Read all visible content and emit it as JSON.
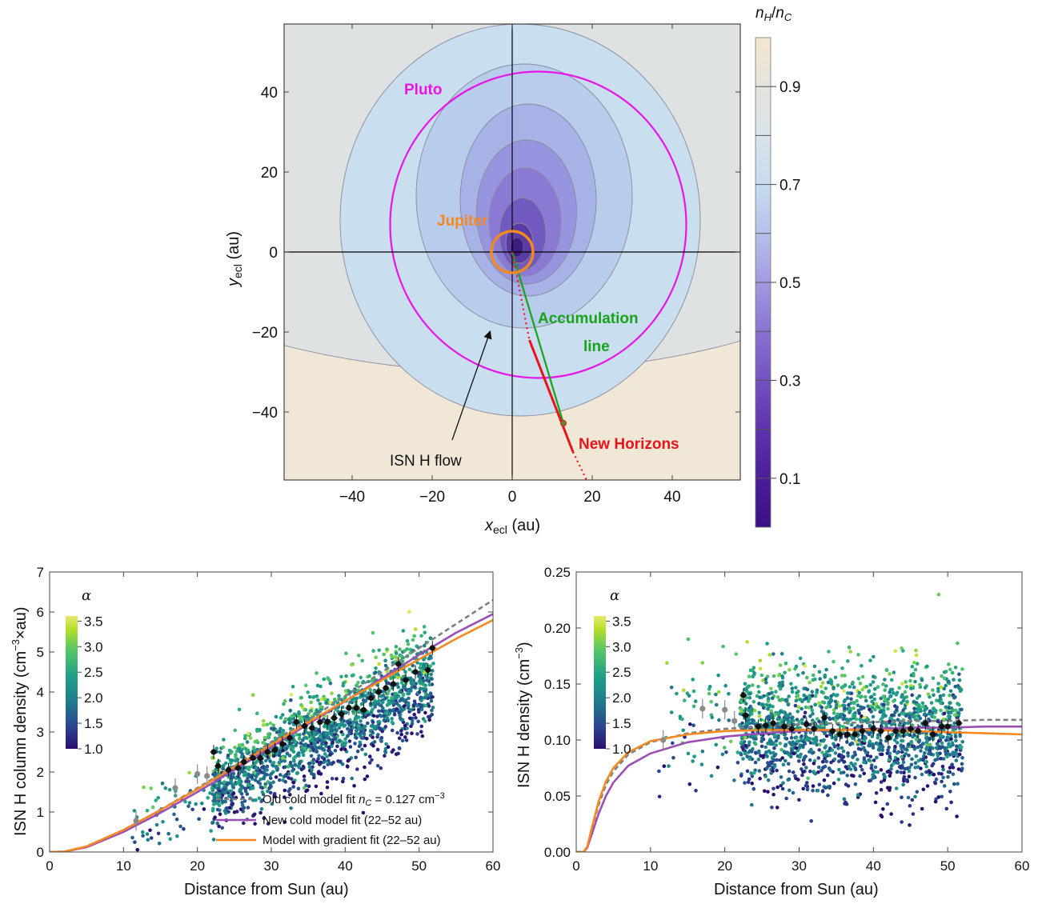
{
  "colors": {
    "pluto": "#e815e8",
    "jupiter": "#f5891f",
    "accumulation": "#1aa31a",
    "new_horizons": "#e8141a",
    "old_fit": "#7f7f7f",
    "new_fit": "#9b4fb5",
    "gradient_fit": "#f5891f",
    "data_black": "#111111",
    "data_gray": "#8a8a8a"
  },
  "chart_data": [
    {
      "type": "contour",
      "xlabel_main": "x",
      "xlabel_sub": "ecl",
      "xlabel_unit": " (au)",
      "ylabel_main": "y",
      "ylabel_sub": "ecl",
      "ylabel_unit": " (au)",
      "xlim": [
        -57,
        57
      ],
      "ylim": [
        -57,
        57
      ],
      "xticks": [
        -40,
        -20,
        0,
        20,
        40
      ],
      "xtick_labels": [
        "−40",
        "−20",
        "0",
        "20",
        "40"
      ],
      "yticks": [
        -40,
        -20,
        0,
        20,
        40
      ],
      "ytick_labels": [
        "−40",
        "−20",
        "0",
        "20",
        "40"
      ],
      "colorbar": {
        "title_html": "n_H/n_C",
        "title_main1": "n",
        "title_sub1": "H",
        "title_slash": "/",
        "title_main2": "n",
        "title_sub2": "C",
        "range": [
          0,
          1
        ],
        "ticks": [
          0.1,
          0.3,
          0.5,
          0.7,
          0.9
        ],
        "tick_labels": [
          "0.1",
          "0.3",
          "0.5",
          "0.7",
          "0.9"
        ],
        "levels": [
          0.1,
          0.2,
          0.3,
          0.4,
          0.5,
          0.6,
          0.7,
          0.8,
          0.9
        ]
      },
      "contours": [
        {
          "level": 0.8,
          "cx": -2,
          "cy": 30,
          "rx": 120,
          "ry": 60
        },
        {
          "level": 0.7,
          "cx": 2,
          "cy": 8,
          "rx": 45,
          "ry": 49
        },
        {
          "level": 0.6,
          "cx": 3,
          "cy": 14,
          "rx": 27,
          "ry": 33
        },
        {
          "level": 0.5,
          "cx": 4,
          "cy": 13,
          "rx": 17,
          "ry": 24
        },
        {
          "level": 0.4,
          "cx": 3.6,
          "cy": 10,
          "rx": 12.5,
          "ry": 18
        },
        {
          "level": 0.3,
          "cx": 3.2,
          "cy": 7.5,
          "rx": 9,
          "ry": 13.5
        },
        {
          "level": 0.2,
          "cx": 2.6,
          "cy": 4.5,
          "rx": 5.8,
          "ry": 9
        },
        {
          "level": 0.1,
          "cx": 1.8,
          "cy": 2.2,
          "rx": 3.4,
          "ry": 5
        }
      ],
      "pluto_orbit": {
        "cx": 6.5,
        "cy": 6.8,
        "rx": 37,
        "ry": 38.3
      },
      "jupiter_orbit": {
        "cx": 0,
        "cy": 0,
        "r": 5.2
      },
      "annotations": {
        "pluto": "Pluto",
        "jupiter": "Jupiter",
        "accumulation_1": "Accumulation",
        "accumulation_2": "line",
        "new_horizons": "New Horizons",
        "flow": "ISN H flow"
      },
      "new_horizons_position": [
        12.8,
        -42.8
      ],
      "accumulation_line": [
        [
          0,
          0
        ],
        [
          12.8,
          -42.8
        ]
      ],
      "trajectory_dotted_inner": [
        [
          0,
          0
        ],
        [
          4.3,
          -22
        ]
      ],
      "trajectory_solid": [
        [
          4.3,
          -22
        ],
        [
          15.2,
          -50
        ]
      ],
      "trajectory_dotted_outer": [
        [
          15.2,
          -50
        ],
        [
          18.6,
          -57
        ]
      ],
      "flow_arrow": {
        "from": [
          -15,
          -47
        ],
        "to": [
          -5.5,
          -19.8
        ]
      }
    },
    {
      "type": "scatter",
      "xlabel": "Distance from Sun (au)",
      "ylabel_main": "ISN H column density (cm",
      "ylabel_sup": "−3",
      "ylabel_tail": "×au)",
      "xlim": [
        0,
        60
      ],
      "ylim": [
        0,
        7
      ],
      "xticks": [
        0,
        10,
        20,
        30,
        40,
        50,
        60
      ],
      "yticks": [
        0,
        1,
        2,
        3,
        4,
        5,
        6,
        7
      ],
      "colorbar": {
        "title": "α",
        "range": [
          1.0,
          3.6
        ],
        "ticks": [
          1.0,
          1.5,
          2.0,
          2.5,
          3.0,
          3.5
        ],
        "tick_labels": [
          "1.0",
          "1.5",
          "2.0",
          "2.5",
          "3.0",
          "3.5"
        ]
      },
      "legend": [
        {
          "label_pre": "Old cold model fit ",
          "label_n": "n",
          "label_sub": "C",
          "label_post": " = 0.127 cm",
          "label_sup": "−3",
          "style": "dashed-gray"
        },
        {
          "label": "New cold model fit (22–52 au)",
          "style": "purple"
        },
        {
          "label": "Model with gradient fit (22–52 au)",
          "style": "orange"
        }
      ],
      "legend_placement": "bottom-right",
      "series": [
        {
          "name": "Old cold model fit",
          "x": [
            0,
            2,
            5,
            10,
            15,
            20,
            25,
            30,
            35,
            40,
            45,
            50,
            55,
            60
          ],
          "y": [
            0,
            0.01,
            0.14,
            0.55,
            1.05,
            1.6,
            2.15,
            2.75,
            3.3,
            3.9,
            4.5,
            5.1,
            5.7,
            6.3
          ]
        },
        {
          "name": "New cold model fit (22–52 au)",
          "x": [
            0,
            2,
            5,
            10,
            15,
            20,
            25,
            30,
            35,
            40,
            45,
            50,
            55,
            60
          ],
          "y": [
            0,
            0.01,
            0.12,
            0.5,
            0.98,
            1.5,
            2.05,
            2.62,
            3.2,
            3.77,
            4.35,
            4.93,
            5.48,
            5.95
          ]
        },
        {
          "name": "Model with gradient fit (22–52 au)",
          "x": [
            0,
            2,
            5,
            10,
            15,
            20,
            25,
            30,
            35,
            40,
            45,
            50,
            55,
            60
          ],
          "y": [
            0,
            0.01,
            0.14,
            0.55,
            1.05,
            1.57,
            2.12,
            2.68,
            3.24,
            3.78,
            4.3,
            4.82,
            5.33,
            5.8
          ]
        }
      ],
      "binned_black": [
        [
          22.2,
          2.5
        ],
        [
          22.8,
          2.15
        ],
        [
          24.2,
          2.05
        ],
        [
          25.5,
          2.1
        ],
        [
          26.3,
          2.25
        ],
        [
          27.5,
          2.35
        ],
        [
          28.5,
          2.35
        ],
        [
          29.5,
          2.5
        ],
        [
          30.5,
          2.55
        ],
        [
          31.5,
          2.7
        ],
        [
          32.5,
          2.85
        ],
        [
          33.4,
          3.25
        ],
        [
          34.5,
          3.15
        ],
        [
          35.5,
          3.1
        ],
        [
          36.6,
          3.25
        ],
        [
          37.6,
          3.25
        ],
        [
          38.5,
          3.35
        ],
        [
          39.5,
          3.45
        ],
        [
          40.5,
          3.6
        ],
        [
          41.5,
          3.6
        ],
        [
          42.5,
          3.55
        ],
        [
          43.5,
          3.85
        ],
        [
          44.5,
          4.0
        ],
        [
          45.5,
          4.1
        ],
        [
          46.5,
          4.2
        ],
        [
          47.2,
          4.7
        ],
        [
          48.2,
          4.3
        ],
        [
          49.5,
          4.5
        ],
        [
          51.2,
          4.55
        ],
        [
          51.8,
          5.1
        ]
      ],
      "binned_gray": [
        [
          11.7,
          0.78
        ],
        [
          17.0,
          1.6
        ],
        [
          20.0,
          1.95
        ],
        [
          21.3,
          1.9
        ]
      ],
      "scatter_model": {
        "n": 1700,
        "x_range": [
          11,
          52
        ],
        "slope": 0.095,
        "intercept": -0.55,
        "spread": 0.55
      }
    },
    {
      "type": "scatter",
      "xlabel": "Distance from Sun (au)",
      "ylabel_main": "ISN H density (cm",
      "ylabel_sup": "−3",
      "ylabel_tail": ")",
      "xlim": [
        0,
        60
      ],
      "ylim": [
        0,
        0.25
      ],
      "xticks": [
        0,
        10,
        20,
        30,
        40,
        50,
        60
      ],
      "yticks": [
        0,
        0.05,
        0.1,
        0.15,
        0.2,
        0.25
      ],
      "ytick_labels": [
        "0.00",
        "0.05",
        "0.10",
        "0.15",
        "0.20",
        "0.25"
      ],
      "colorbar": {
        "title": "α",
        "range": [
          1.0,
          3.6
        ],
        "ticks": [
          1.0,
          1.5,
          2.0,
          2.5,
          3.0,
          3.5
        ],
        "tick_labels": [
          "1.0",
          "1.5",
          "2.0",
          "2.5",
          "3.0",
          "3.5"
        ]
      },
      "series": [
        {
          "name": "Old cold model fit",
          "x": [
            0,
            1,
            1.5,
            2,
            3,
            4,
            5,
            7,
            10,
            15,
            20,
            25,
            30,
            35,
            40,
            45,
            50,
            55,
            60
          ],
          "y": [
            0,
            0,
            0.005,
            0.018,
            0.042,
            0.06,
            0.072,
            0.087,
            0.098,
            0.106,
            0.11,
            0.112,
            0.114,
            0.115,
            0.116,
            0.117,
            0.117,
            0.118,
            0.118
          ]
        },
        {
          "name": "New cold model fit (22–52 au)",
          "x": [
            0,
            1,
            1.5,
            2,
            3,
            4,
            5,
            7,
            10,
            15,
            20,
            25,
            30,
            35,
            40,
            45,
            50,
            55,
            60
          ],
          "y": [
            0,
            0,
            0.004,
            0.014,
            0.034,
            0.05,
            0.062,
            0.077,
            0.088,
            0.098,
            0.103,
            0.106,
            0.108,
            0.109,
            0.11,
            0.111,
            0.111,
            0.112,
            0.112
          ]
        },
        {
          "name": "Model with gradient fit (22–52 au)",
          "x": [
            0,
            1,
            1.5,
            2,
            3,
            4,
            5,
            7,
            10,
            15,
            20,
            25,
            30,
            35,
            40,
            45,
            50,
            55,
            60
          ],
          "y": [
            0,
            0,
            0.005,
            0.019,
            0.045,
            0.063,
            0.075,
            0.089,
            0.099,
            0.105,
            0.108,
            0.109,
            0.109,
            0.109,
            0.109,
            0.108,
            0.107,
            0.106,
            0.105
          ]
        }
      ],
      "binned_black": [
        [
          22.5,
          0.14
        ],
        [
          22.8,
          0.122
        ],
        [
          24.5,
          0.112
        ],
        [
          25.5,
          0.113
        ],
        [
          26.5,
          0.115
        ],
        [
          28,
          0.112
        ],
        [
          29,
          0.11
        ],
        [
          31,
          0.114
        ],
        [
          32,
          0.11
        ],
        [
          33.4,
          0.12
        ],
        [
          34.5,
          0.108
        ],
        [
          35.5,
          0.105
        ],
        [
          36.5,
          0.105
        ],
        [
          37.5,
          0.105
        ],
        [
          38.5,
          0.108
        ],
        [
          40,
          0.11
        ],
        [
          41,
          0.108
        ],
        [
          42,
          0.102
        ],
        [
          43,
          0.108
        ],
        [
          44,
          0.108
        ],
        [
          45,
          0.11
        ],
        [
          46,
          0.108
        ],
        [
          47,
          0.115
        ],
        [
          48,
          0.105
        ],
        [
          49.2,
          0.112
        ],
        [
          50,
          0.112
        ],
        [
          51.5,
          0.115
        ]
      ],
      "binned_gray": [
        [
          11.7,
          0.1
        ],
        [
          17.0,
          0.128
        ],
        [
          20.0,
          0.127
        ],
        [
          21.3,
          0.117
        ]
      ],
      "scatter_model": {
        "n": 1700,
        "x_range": [
          11,
          52
        ],
        "center": 0.11,
        "spread": 0.028
      }
    }
  ]
}
